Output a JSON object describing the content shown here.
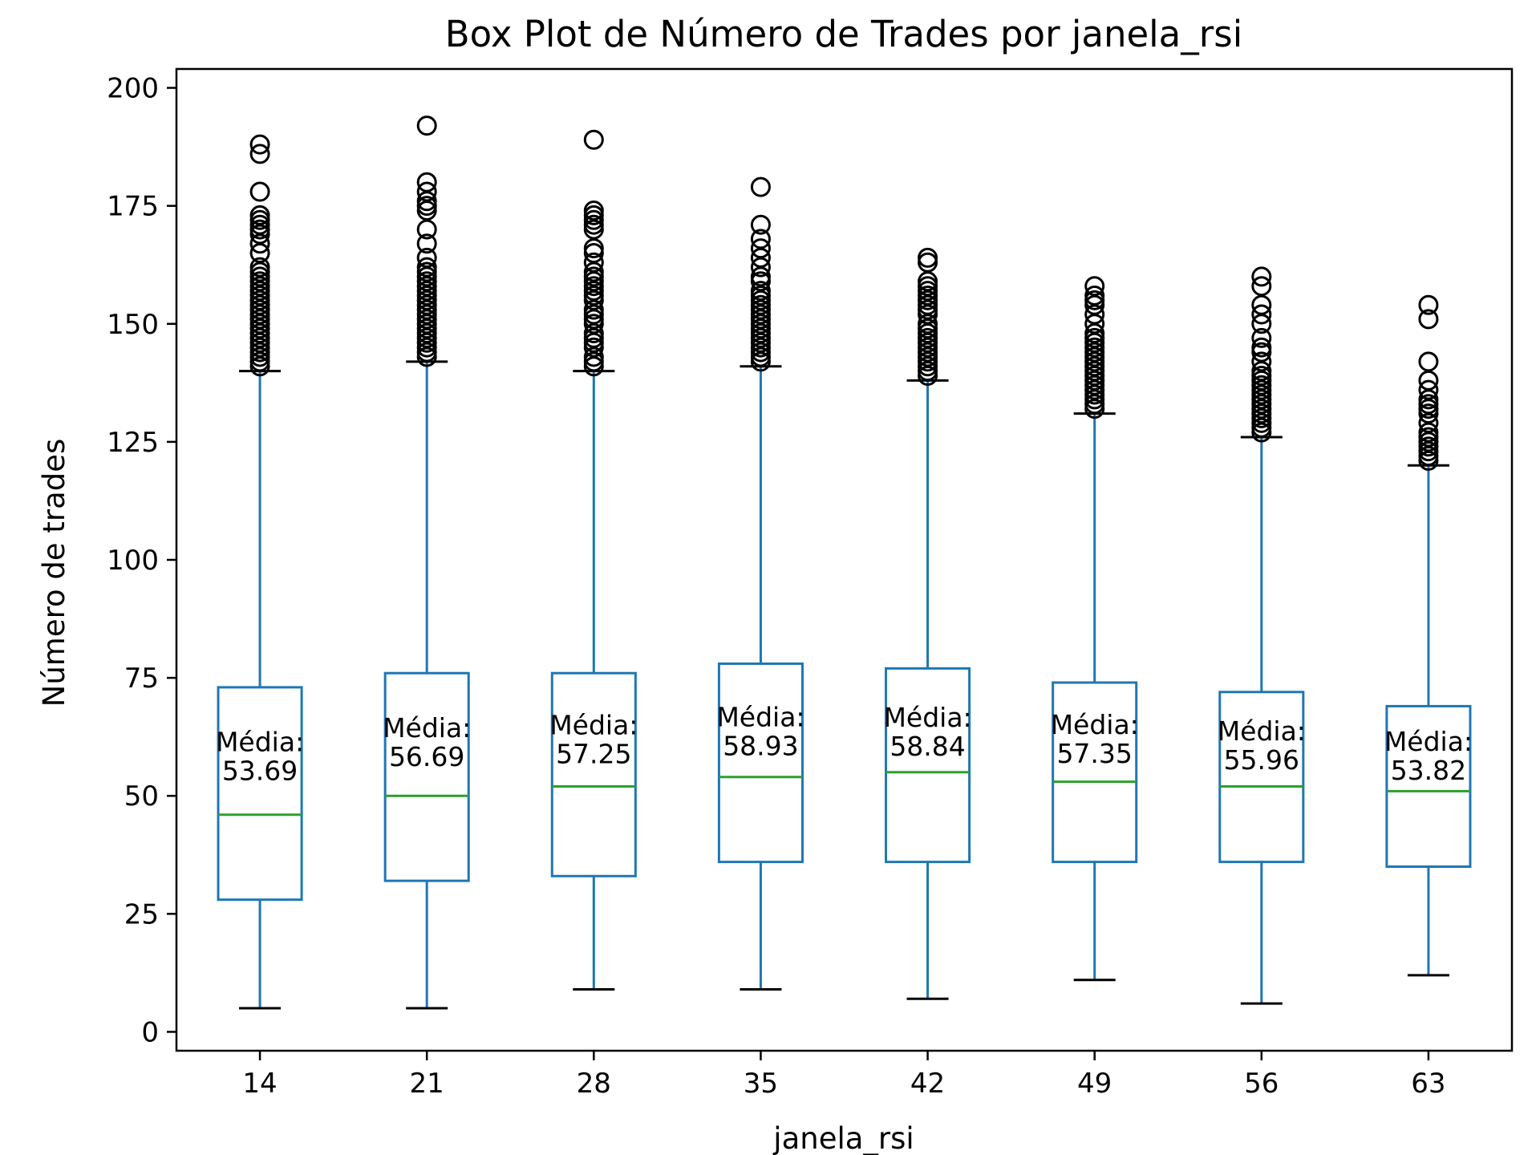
{
  "chart_data": {
    "type": "box",
    "title": "Box Plot de Número de Trades por janela_rsi",
    "xlabel": "janela_rsi",
    "ylabel": "Número de trades",
    "ylim": [
      -4,
      204
    ],
    "yticks": [
      0,
      25,
      50,
      75,
      100,
      125,
      150,
      175,
      200
    ],
    "categories": [
      "14",
      "21",
      "28",
      "35",
      "42",
      "49",
      "56",
      "63"
    ],
    "annotation_prefix": "Média:",
    "boxes": [
      {
        "category": "14",
        "whisker_low": 5,
        "q1": 28,
        "median": 46,
        "q3": 73,
        "whisker_high": 140,
        "mean": 53.69,
        "mean_label": "53.69",
        "outliers": [
          141,
          142,
          143,
          144,
          145,
          146,
          147,
          148,
          149,
          150,
          151,
          152,
          153,
          154,
          155,
          156,
          157,
          158,
          159,
          160,
          161,
          162,
          165,
          167,
          169,
          170,
          171,
          172,
          173,
          178,
          186,
          188
        ]
      },
      {
        "category": "21",
        "whisker_low": 5,
        "q1": 32,
        "median": 50,
        "q3": 76,
        "whisker_high": 142,
        "mean": 56.69,
        "mean_label": "56.69",
        "outliers": [
          143,
          144,
          145,
          146,
          147,
          148,
          149,
          150,
          151,
          152,
          153,
          154,
          155,
          156,
          157,
          158,
          159,
          160,
          161,
          162,
          164,
          167,
          170,
          174,
          175,
          176,
          178,
          180,
          192
        ]
      },
      {
        "category": "28",
        "whisker_low": 9,
        "q1": 33,
        "median": 52,
        "q3": 76,
        "whisker_high": 140,
        "mean": 57.25,
        "mean_label": "57.25",
        "outliers": [
          141,
          142,
          143,
          145,
          146,
          147,
          148,
          150,
          151,
          152,
          153,
          155,
          156,
          157,
          158,
          159,
          160,
          161,
          163,
          165,
          166,
          170,
          171,
          172,
          173,
          174,
          189
        ]
      },
      {
        "category": "35",
        "whisker_low": 9,
        "q1": 36,
        "median": 54,
        "q3": 78,
        "whisker_high": 141,
        "mean": 58.93,
        "mean_label": "58.93",
        "outliers": [
          142,
          143,
          144,
          145,
          146,
          147,
          148,
          149,
          150,
          151,
          152,
          153,
          154,
          155,
          156,
          157,
          159,
          160,
          162,
          164,
          166,
          168,
          171,
          179
        ]
      },
      {
        "category": "42",
        "whisker_low": 7,
        "q1": 36,
        "median": 55,
        "q3": 77,
        "whisker_high": 138,
        "mean": 58.84,
        "mean_label": "58.84",
        "outliers": [
          139,
          140,
          141,
          142,
          143,
          144,
          145,
          146,
          147,
          148,
          149,
          150,
          152,
          153,
          154,
          155,
          156,
          157,
          158,
          159,
          163,
          164
        ]
      },
      {
        "category": "49",
        "whisker_low": 11,
        "q1": 36,
        "median": 53,
        "q3": 74,
        "whisker_high": 131,
        "mean": 57.35,
        "mean_label": "57.35",
        "outliers": [
          132,
          133,
          134,
          135,
          136,
          137,
          138,
          139,
          140,
          141,
          142,
          143,
          144,
          145,
          146,
          147,
          148,
          150,
          152,
          154,
          155,
          156,
          158
        ]
      },
      {
        "category": "56",
        "whisker_low": 6,
        "q1": 36,
        "median": 52,
        "q3": 72,
        "whisker_high": 126,
        "mean": 55.96,
        "mean_label": "55.96",
        "outliers": [
          127,
          128,
          129,
          130,
          131,
          132,
          133,
          134,
          135,
          136,
          137,
          138,
          139,
          140,
          142,
          144,
          145,
          147,
          150,
          152,
          154,
          158,
          160
        ]
      },
      {
        "category": "63",
        "whisker_low": 12,
        "q1": 35,
        "median": 51,
        "q3": 69,
        "whisker_high": 120,
        "mean": 53.82,
        "mean_label": "53.82",
        "outliers": [
          121,
          122,
          123,
          124,
          125,
          126,
          127,
          129,
          131,
          132,
          133,
          134,
          136,
          138,
          142,
          151,
          154
        ]
      }
    ],
    "colors": {
      "box": "#1f77b4",
      "median": "#2ca02c",
      "whisker_cap": "#000000",
      "outlier": "#000000"
    },
    "grid": false,
    "legend": "none"
  }
}
